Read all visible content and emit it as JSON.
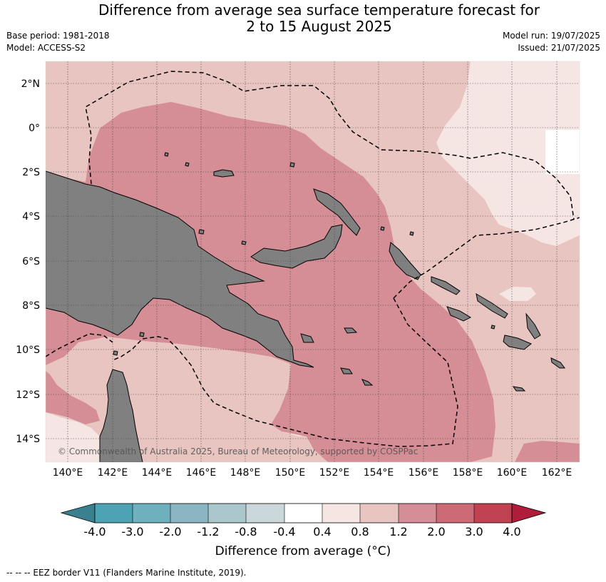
{
  "title_line1": "Difference from average sea surface temperature forecast for",
  "title_line2": "2 to 15 August 2025",
  "base_period": "Base period: 1981-2018",
  "model": "Model: ACCESS-S2",
  "model_run": "Model run: 19/07/2025",
  "issued": "Issued: 21/07/2025",
  "copyright": "© Commonwealth of Australia 2025, Bureau of Meteorology, supported by COSPPac",
  "lat_labels": [
    "2°N",
    "0°",
    "2°S",
    "4°S",
    "6°S",
    "8°S",
    "10°S",
    "12°S",
    "14°S"
  ],
  "lon_labels": [
    "140°E",
    "142°E",
    "144°E",
    "146°E",
    "148°E",
    "150°E",
    "152°E",
    "154°E",
    "156°E",
    "158°E",
    "160°E",
    "162°E"
  ],
  "colorbar": {
    "ticks": [
      "-4.0",
      "-3.0",
      "-2.0",
      "-1.2",
      "-0.8",
      "-0.4",
      "0.4",
      "0.8",
      "1.2",
      "2.0",
      "3.0",
      "4.0"
    ],
    "colors": [
      "#4da3b3",
      "#6fb0bf",
      "#8ab6c2",
      "#a9c7cc",
      "#cbd8db",
      "#ffffff",
      "#f5e6e4",
      "#e8c5c1",
      "#d58d96",
      "#cc6b75",
      "#c04150"
    ],
    "under_color": "#3a8090",
    "over_color": "#b01c3c",
    "label": "Difference from average (°C)"
  },
  "map_colors": {
    "land": "#808080",
    "bin_04_08": "#f5e6e4",
    "bin_08_12": "#e8c5c1",
    "bin_12_20": "#d58d96",
    "above_background": "#ffffff"
  },
  "footnote": "--  --  -- EEZ border V11 (Flanders Marine Institute, 2019)."
}
